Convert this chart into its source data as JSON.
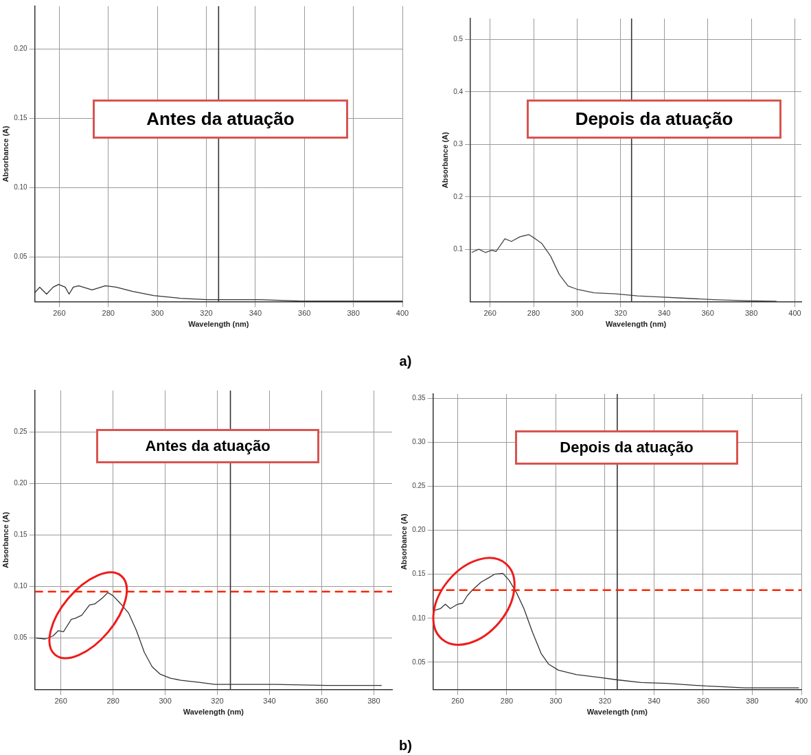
{
  "chart_data": [
    {
      "type": "line",
      "xlabel": "Wavelength (nm)",
      "ylabel": "Absorbance (A)",
      "annotations": [
        "Antes da atuação"
      ],
      "xlim": [
        250,
        400
      ],
      "xticks": [
        260,
        280,
        300,
        320,
        340,
        360,
        380,
        400
      ],
      "ylim": [
        0.0175,
        0.231
      ],
      "yticks": [
        {
          "value": 0.05,
          "label": "0.05"
        },
        {
          "value": 0.1,
          "label": "0.10"
        },
        {
          "value": 0.15,
          "label": "0.15"
        },
        {
          "value": 0.2,
          "label": "0.20"
        }
      ],
      "grid": true,
      "ref_lines": [
        {
          "axis": "x",
          "value": 325,
          "label": null,
          "color": "#333333",
          "line_style": "solid"
        }
      ],
      "series": [
        {
          "color": "#333333",
          "x": [
            250,
            252,
            254.8,
            257.5,
            259.7,
            262.4,
            264,
            265.7,
            267.9,
            273.4,
            278.8,
            283.2,
            289.7,
            298.5,
            309.4,
            320.4,
            331,
            342,
            358.6,
            375,
            400
          ],
          "values": [
            0.024,
            0.028,
            0.023,
            0.028,
            0.03,
            0.028,
            0.023,
            0.028,
            0.029,
            0.026,
            0.029,
            0.028,
            0.025,
            0.022,
            0.02,
            0.019,
            0.019,
            0.019,
            0.018,
            0.018,
            0.018
          ]
        }
      ]
    },
    {
      "type": "line",
      "xlabel": "Wavelength (nm)",
      "ylabel": "Absorbance (A)",
      "annotations": [
        "Depois da atuação",
        "a)"
      ],
      "xlim": [
        251,
        403
      ],
      "xticks": [
        260,
        280,
        300,
        320,
        340,
        360,
        380,
        400
      ],
      "ylim": [
        0,
        0.54
      ],
      "yticks": [
        0.1,
        0.2,
        0.3,
        0.4,
        0.5
      ],
      "grid": true,
      "ref_lines": [
        {
          "axis": "x",
          "value": 325,
          "label": null,
          "color": "#333333",
          "line_style": "solid"
        }
      ],
      "series": [
        {
          "color": "#444444",
          "x": [
            251.6,
            254.8,
            257.8,
            260.8,
            262.8,
            266.8,
            269.8,
            273.8,
            277.8,
            280.8,
            283.8,
            287.8,
            291.8,
            295.8,
            299.8,
            307.8,
            317.8,
            327.8,
            337.8,
            347.8,
            362.8,
            377.8,
            391.6
          ],
          "values": [
            0.094,
            0.1,
            0.094,
            0.098,
            0.096,
            0.12,
            0.115,
            0.124,
            0.128,
            0.12,
            0.111,
            0.087,
            0.052,
            0.03,
            0.024,
            0.017,
            0.015,
            0.011,
            0.009,
            0.007,
            0.004,
            0.002,
            0.001
          ]
        }
      ]
    },
    {
      "type": "line",
      "xlabel": "Wavelength (nm)",
      "ylabel": "Absorbance (A)",
      "annotations": [
        "Antes da atuação"
      ],
      "xlim": [
        250,
        387
      ],
      "xticks": [
        260,
        280,
        300,
        320,
        340,
        360,
        380
      ],
      "ylim": [
        0,
        0.29
      ],
      "yticks": [
        {
          "value": 0.05,
          "label": "0.05"
        },
        {
          "value": 0.1,
          "label": "0.10"
        },
        {
          "value": 0.15,
          "label": "0.15"
        },
        {
          "value": 0.2,
          "label": "0.20"
        },
        {
          "value": 0.25,
          "label": "0.25"
        }
      ],
      "grid": true,
      "ref_lines": [
        {
          "axis": "x",
          "value": 325,
          "label": null,
          "color": "#333333",
          "line_style": "solid"
        },
        {
          "axis": "y",
          "value": 0.095,
          "label": null,
          "color": "#ff2200",
          "line_style": "dashed"
        }
      ],
      "series": [
        {
          "color": "#333333",
          "x": [
            250.5,
            254,
            257,
            259,
            261,
            264,
            265.5,
            268,
            271,
            273,
            276,
            278,
            280,
            283,
            286,
            289,
            292,
            295,
            298,
            302,
            306,
            313,
            319,
            328,
            342,
            362,
            383
          ],
          "values": [
            0.05,
            0.049,
            0.052,
            0.057,
            0.056,
            0.068,
            0.069,
            0.072,
            0.082,
            0.083,
            0.089,
            0.094,
            0.091,
            0.083,
            0.074,
            0.057,
            0.036,
            0.022,
            0.015,
            0.011,
            0.009,
            0.007,
            0.005,
            0.005,
            0.005,
            0.004,
            0.004
          ]
        }
      ]
    },
    {
      "type": "line",
      "xlabel": "Wavelength (nm)",
      "ylabel": "Absorbance (A)",
      "annotations": [
        "Depois da atuação",
        "b)"
      ],
      "xlim": [
        250,
        400
      ],
      "xticks": [
        260,
        280,
        300,
        320,
        340,
        360,
        380,
        400
      ],
      "ylim": [
        0.019,
        0.355
      ],
      "yticks": [
        {
          "value": 0.05,
          "label": "0.05"
        },
        {
          "value": 0.1,
          "label": "0.10"
        },
        {
          "value": 0.15,
          "label": "0.15"
        },
        {
          "value": 0.2,
          "label": "0.20"
        },
        {
          "value": 0.25,
          "label": "0.25"
        },
        {
          "value": 0.3,
          "label": "0.30"
        },
        {
          "value": 0.35,
          "label": "0.35"
        }
      ],
      "grid": true,
      "ref_lines": [
        {
          "axis": "x",
          "value": 325,
          "label": null,
          "color": "#333333",
          "line_style": "solid"
        },
        {
          "axis": "y",
          "value": 0.132,
          "label": null,
          "color": "#ff2200",
          "line_style": "dashed"
        }
      ],
      "series": [
        {
          "color": "#333333",
          "x": [
            250.5,
            253,
            255,
            257,
            260,
            262,
            264,
            266,
            269.5,
            272.6,
            275,
            278.4,
            281,
            284,
            287,
            290.5,
            294,
            297,
            301,
            308.4,
            317,
            325,
            334.7,
            345,
            361,
            377,
            399
          ],
          "values": [
            0.109,
            0.111,
            0.116,
            0.111,
            0.116,
            0.117,
            0.126,
            0.132,
            0.141,
            0.146,
            0.15,
            0.151,
            0.143,
            0.129,
            0.111,
            0.084,
            0.06,
            0.048,
            0.041,
            0.036,
            0.033,
            0.03,
            0.027,
            0.026,
            0.023,
            0.021,
            0.021
          ]
        }
      ]
    }
  ]
}
